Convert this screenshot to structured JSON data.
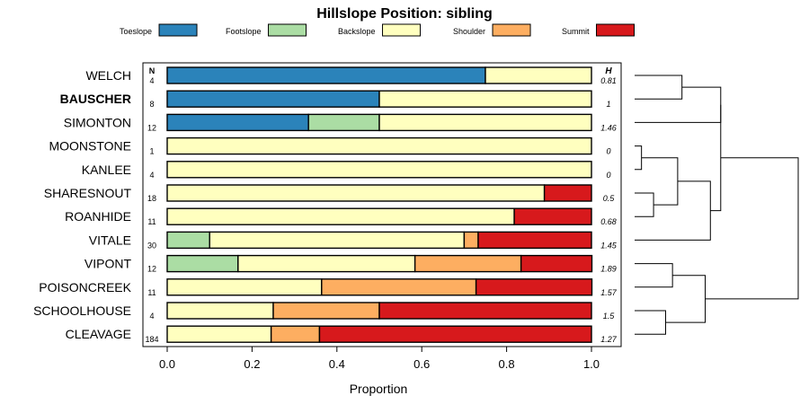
{
  "chart_data": {
    "type": "stacked-bar-horizontal",
    "title": "Hillslope Position: sibling",
    "xlabel": "Proportion",
    "ylabel": "",
    "xlim": [
      0,
      1
    ],
    "xticks": [
      "0.0",
      "0.2",
      "0.4",
      "0.6",
      "0.8",
      "1.0"
    ],
    "n_header": "N",
    "h_header": "H",
    "legend_placement": "top",
    "legend": [
      {
        "name": "Toeslope",
        "color": "#2b83ba"
      },
      {
        "name": "Footslope",
        "color": "#abdda4"
      },
      {
        "name": "Backslope",
        "color": "#ffffbf"
      },
      {
        "name": "Shoulder",
        "color": "#fdae61"
      },
      {
        "name": "Summit",
        "color": "#d7191c"
      }
    ],
    "rows": [
      {
        "label": "WELCH",
        "bold": false,
        "n": "4",
        "h": "0.81",
        "values": [
          0.75,
          0,
          0.25,
          0,
          0
        ]
      },
      {
        "label": "BAUSCHER",
        "bold": true,
        "n": "8",
        "h": "1",
        "values": [
          0.5,
          0,
          0.5,
          0,
          0
        ]
      },
      {
        "label": "SIMONTON",
        "bold": false,
        "n": "12",
        "h": "1.46",
        "values": [
          0.333,
          0.167,
          0.5,
          0,
          0
        ]
      },
      {
        "label": "MOONSTONE",
        "bold": false,
        "n": "1",
        "h": "0",
        "values": [
          0,
          0,
          1,
          0,
          0
        ]
      },
      {
        "label": "KANLEE",
        "bold": false,
        "n": "4",
        "h": "0",
        "values": [
          0,
          0,
          1,
          0,
          0
        ]
      },
      {
        "label": "SHARESNOUT",
        "bold": false,
        "n": "18",
        "h": "0.5",
        "values": [
          0,
          0,
          0.889,
          0,
          0.111
        ]
      },
      {
        "label": "ROANHIDE",
        "bold": false,
        "n": "11",
        "h": "0.68",
        "values": [
          0,
          0,
          0.818,
          0,
          0.182
        ]
      },
      {
        "label": "VITALE",
        "bold": false,
        "n": "30",
        "h": "1.45",
        "values": [
          0,
          0.1,
          0.6,
          0.033,
          0.267
        ]
      },
      {
        "label": "VIPONT",
        "bold": false,
        "n": "12",
        "h": "1.89",
        "values": [
          0,
          0.167,
          0.417,
          0.25,
          0.167
        ]
      },
      {
        "label": "POISONCREEK",
        "bold": false,
        "n": "11",
        "h": "1.57",
        "values": [
          0,
          0,
          0.364,
          0.364,
          0.273
        ]
      },
      {
        "label": "SCHOOLHOUSE",
        "bold": false,
        "n": "4",
        "h": "1.5",
        "values": [
          0,
          0,
          0.25,
          0.25,
          0.5
        ]
      },
      {
        "label": "CLEAVAGE",
        "bold": false,
        "n": "184",
        "h": "1.27",
        "values": [
          0,
          0,
          0.245,
          0.114,
          0.641
        ]
      }
    ],
    "dendrogram": {
      "merges": [
        [
          0,
          1,
          0.55
        ],
        [
          3,
          4,
          0.08
        ],
        [
          5,
          6,
          0.22
        ],
        [
          8,
          9,
          0.44
        ],
        [
          10,
          11,
          0.36
        ],
        [
          -2,
          -3,
          0.5
        ],
        [
          -6,
          7,
          0.88
        ],
        [
          -4,
          -5,
          0.82
        ],
        [
          2,
          -1,
          1.0
        ],
        [
          -9,
          -7,
          1.0
        ],
        [
          -10,
          -8,
          1.9
        ]
      ],
      "max_height": 1.9
    }
  }
}
